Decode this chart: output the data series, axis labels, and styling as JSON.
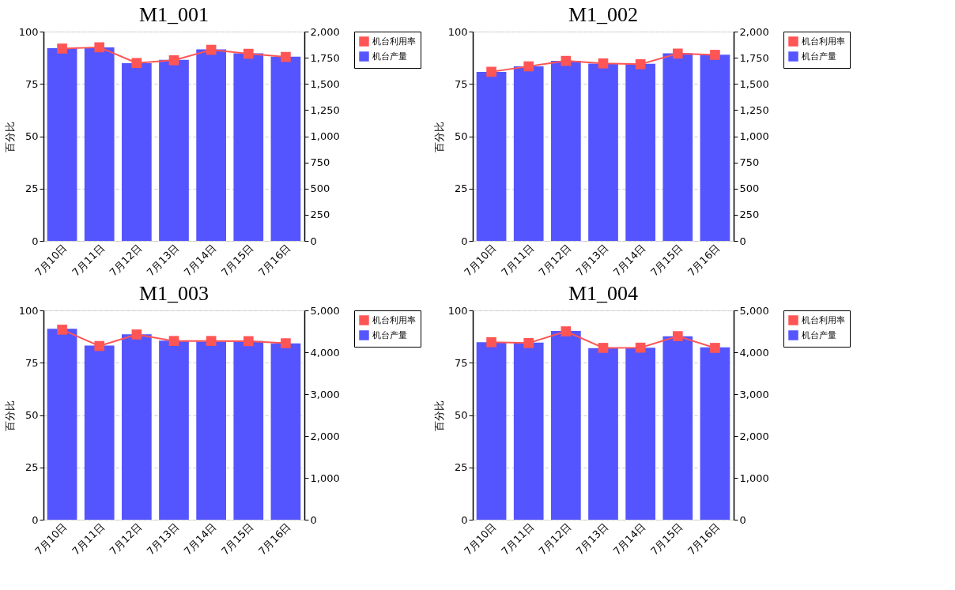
{
  "chart_data": [
    {
      "type": "bar",
      "title": "M1_001",
      "ylabel": "百分比",
      "categories": [
        "7月10日",
        "7月11日",
        "7月12日",
        "7月13日",
        "7月14日",
        "7月15日",
        "7月16日"
      ],
      "series": [
        {
          "name": "机台利用率",
          "type": "line",
          "color": "#ff5555",
          "values": [
            91.9,
            92.5,
            85.0,
            86.3,
            91.3,
            89.4,
            87.9
          ]
        },
        {
          "name": "机台产量",
          "axis": "y2",
          "color": "#5555ff",
          "values": [
            1842,
            1850,
            1698,
            1730,
            1830,
            1792,
            1760
          ]
        }
      ],
      "ylim": [
        0,
        100
      ],
      "yticks": [
        0,
        25,
        50,
        75,
        100
      ],
      "y2lim": [
        0,
        2000
      ],
      "y2ticks": [
        0,
        250,
        500,
        750,
        {
          "value": 1000,
          "label": "1,000"
        },
        {
          "value": 1250,
          "label": "1,250"
        },
        {
          "value": 1500,
          "label": "1,500"
        },
        {
          "value": 1750,
          "label": "1,750"
        },
        {
          "value": 2000,
          "label": "2,000"
        }
      ],
      "grid": "y",
      "legend": "right",
      "marker": "square"
    },
    {
      "type": "bar",
      "title": "M1_002",
      "ylabel": "百分比",
      "categories": [
        "7月10日",
        "7月11日",
        "7月12日",
        "7月13日",
        "7月14日",
        "7月15日",
        "7月16日"
      ],
      "series": [
        {
          "name": "机台利用率",
          "type": "line",
          "color": "#ff5555",
          "values": [
            80.8,
            83.4,
            86.0,
            84.8,
            84.4,
            89.5,
            88.9
          ]
        },
        {
          "name": "机台产量",
          "axis": "y2",
          "color": "#5555ff",
          "values": [
            1615,
            1668,
            1720,
            1695,
            1693,
            1793,
            1780
          ]
        }
      ],
      "ylim": [
        0,
        100
      ],
      "yticks": [
        0,
        25,
        50,
        75,
        100
      ],
      "y2lim": [
        0,
        2000
      ],
      "y2ticks": [
        0,
        250,
        500,
        750,
        {
          "value": 1000,
          "label": "1,000"
        },
        {
          "value": 1250,
          "label": "1,250"
        },
        {
          "value": 1500,
          "label": "1,500"
        },
        {
          "value": 1750,
          "label": "1,750"
        },
        {
          "value": 2000,
          "label": "2,000"
        }
      ],
      "grid": "y",
      "legend": "right",
      "marker": "square"
    },
    {
      "type": "bar",
      "title": "M1_003",
      "ylabel": "百分比",
      "categories": [
        "7月10日",
        "7月11日",
        "7月12日",
        "7月13日",
        "7月14日",
        "7月15日",
        "7月16日"
      ],
      "series": [
        {
          "name": "机台利用率",
          "type": "line",
          "color": "#ff5555",
          "values": [
            90.8,
            83.0,
            88.5,
            85.4,
            85.4,
            85.3,
            84.3
          ]
        },
        {
          "name": "机台产量",
          "axis": "y2",
          "color": "#5555ff",
          "values": [
            4560,
            4160,
            4430,
            4280,
            4260,
            4270,
            4210
          ]
        }
      ],
      "ylim": [
        0,
        100
      ],
      "yticks": [
        0,
        25,
        50,
        75,
        100
      ],
      "y2lim": [
        0,
        5000
      ],
      "y2ticks": [
        0,
        {
          "value": 1000,
          "label": "1,000"
        },
        {
          "value": 2000,
          "label": "2,000"
        },
        {
          "value": 3000,
          "label": "3,000"
        },
        {
          "value": 4000,
          "label": "4,000"
        },
        {
          "value": 5000,
          "label": "5,000"
        }
      ],
      "grid": "y",
      "legend": "right",
      "marker": "square"
    },
    {
      "type": "bar",
      "title": "M1_004",
      "ylabel": "百分比",
      "categories": [
        "7月10日",
        "7月11日",
        "7月12日",
        "7月13日",
        "7月14日",
        "7月15日",
        "7月16日"
      ],
      "series": [
        {
          "name": "机台利用率",
          "type": "line",
          "color": "#ff5555",
          "values": [
            84.8,
            84.4,
            90.0,
            82.1,
            82.2,
            87.7,
            82.1
          ]
        },
        {
          "name": "机台产量",
          "axis": "y2",
          "color": "#5555ff",
          "values": [
            4240,
            4230,
            4510,
            4100,
            4110,
            4380,
            4120
          ]
        }
      ],
      "ylim": [
        0,
        100
      ],
      "yticks": [
        0,
        25,
        50,
        75,
        100
      ],
      "y2lim": [
        0,
        5000
      ],
      "y2ticks": [
        0,
        {
          "value": 1000,
          "label": "1,000"
        },
        {
          "value": 2000,
          "label": "2,000"
        },
        {
          "value": 3000,
          "label": "3,000"
        },
        {
          "value": 4000,
          "label": "4,000"
        },
        {
          "value": 5000,
          "label": "5,000"
        }
      ],
      "grid": "y",
      "legend": "right",
      "marker": "square"
    }
  ]
}
